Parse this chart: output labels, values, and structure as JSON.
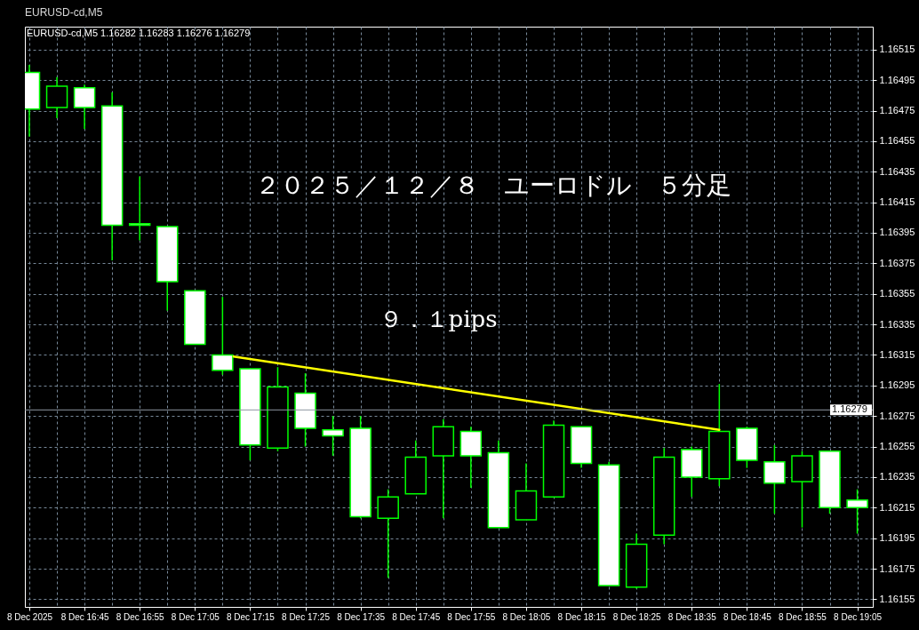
{
  "chart_data": {
    "type": "candlestick",
    "title": "２０２５／１２／８　ユーロドル　５分足",
    "subtitle": "EURUSD-cd,M5  1.16282 1.16283 1.16276 1.16279",
    "annotations": [
      "EURUSD-cd,M5",
      "９．１pips"
    ],
    "x": [
      "2025-12-08T16:35",
      "2025-12-08T16:40",
      "2025-12-08T16:45",
      "2025-12-08T16:50",
      "2025-12-08T16:55",
      "2025-12-08T17:00",
      "2025-12-08T17:05",
      "2025-12-08T17:10",
      "2025-12-08T17:15",
      "2025-12-08T17:20",
      "2025-12-08T17:25",
      "2025-12-08T17:30",
      "2025-12-08T17:35",
      "2025-12-08T17:40",
      "2025-12-08T17:45",
      "2025-12-08T17:50",
      "2025-12-08T17:55",
      "2025-12-08T18:00",
      "2025-12-08T18:05",
      "2025-12-08T18:10",
      "2025-12-08T18:15",
      "2025-12-08T18:20",
      "2025-12-08T18:25",
      "2025-12-08T18:30",
      "2025-12-08T18:35",
      "2025-12-08T18:40",
      "2025-12-08T18:45",
      "2025-12-08T18:50",
      "2025-12-08T18:55",
      "2025-12-08T19:00",
      "2025-12-08T19:05"
    ],
    "series": [
      {
        "type": "candlestick",
        "color": "#00ff00",
        "colors": [
          "#ffffff",
          "#000000",
          "#ffffff",
          "#ffffff",
          "#ffffff",
          "#ffffff",
          "#ffffff",
          "#ffffff",
          "#ffffff",
          "#000000",
          "#ffffff",
          "#ffffff",
          "#ffffff",
          "#000000",
          "#000000",
          "#000000",
          "#ffffff",
          "#ffffff",
          "#000000",
          "#000000",
          "#ffffff",
          "#ffffff",
          "#000000",
          "#000000",
          "#ffffff",
          "#000000",
          "#ffffff",
          "#ffffff",
          "#000000",
          "#ffffff",
          "#ffffff"
        ],
        "ohlc": [
          [
            1.165,
            1.16505,
            1.16458,
            1.16476
          ],
          [
            1.16477,
            1.16497,
            1.1647,
            1.16491
          ],
          [
            1.1649,
            1.16492,
            1.16463,
            1.16477
          ],
          [
            1.16478,
            1.16487,
            1.16377,
            1.164
          ],
          [
            1.16401,
            1.16432,
            1.1639,
            1.164
          ],
          [
            1.16399,
            1.16399,
            1.16344,
            1.16363
          ],
          [
            1.16357,
            1.16357,
            1.16322,
            1.16322
          ],
          [
            1.16315,
            1.16353,
            1.16302,
            1.16305
          ],
          [
            1.16306,
            1.16306,
            1.16246,
            1.16256
          ],
          [
            1.16254,
            1.16307,
            1.16252,
            1.16294
          ],
          [
            1.1629,
            1.16303,
            1.16255,
            1.16267
          ],
          [
            1.16266,
            1.16275,
            1.16249,
            1.16262
          ],
          [
            1.16267,
            1.16275,
            1.16208,
            1.16209
          ],
          [
            1.16208,
            1.16227,
            1.16169,
            1.16222
          ],
          [
            1.16224,
            1.16259,
            1.16224,
            1.16248
          ],
          [
            1.16249,
            1.16273,
            1.16208,
            1.16268
          ],
          [
            1.16265,
            1.16268,
            1.16228,
            1.16249
          ],
          [
            1.16251,
            1.16259,
            1.16202,
            1.16202
          ],
          [
            1.16207,
            1.16244,
            1.16207,
            1.16226
          ],
          [
            1.16222,
            1.16272,
            1.16222,
            1.16269
          ],
          [
            1.16268,
            1.16268,
            1.16241,
            1.16244
          ],
          [
            1.16243,
            1.16245,
            1.16164,
            1.16164
          ],
          [
            1.16163,
            1.16198,
            1.16162,
            1.16191
          ],
          [
            1.16197,
            1.16254,
            1.16191,
            1.16248
          ],
          [
            1.16253,
            1.16255,
            1.16222,
            1.16235
          ],
          [
            1.16234,
            1.16296,
            1.16229,
            1.16265
          ],
          [
            1.16267,
            1.16268,
            1.16241,
            1.16246
          ],
          [
            1.16245,
            1.16256,
            1.16211,
            1.16231
          ],
          [
            1.16232,
            1.16252,
            1.16202,
            1.16249
          ],
          [
            1.16252,
            1.16252,
            1.16211,
            1.16215
          ],
          [
            1.1622,
            1.16227,
            1.16198,
            1.16215
          ]
        ]
      },
      {
        "type": "line",
        "color": "#ffff00",
        "x": [
          "2025-12-08T17:12",
          "2025-12-08T18:40"
        ],
        "values": [
          1.16314,
          1.16266
        ]
      }
    ],
    "ref_lines": [
      {
        "axis": "y",
        "value": 1.16279,
        "label": "1.16279",
        "color": "#8c96a0"
      }
    ],
    "xlim": [
      "2025-12-08T16:35",
      "2025-12-08T19:07"
    ],
    "xticks": [
      {
        "value": "2025-12-08T16:35",
        "label": "8 Dec 2025"
      },
      {
        "value": "2025-12-08T16:40",
        "label": null
      },
      {
        "value": "2025-12-08T16:45",
        "label": "8 Dec 16:45"
      },
      {
        "value": "2025-12-08T16:50",
        "label": null
      },
      {
        "value": "2025-12-08T16:55",
        "label": "8 Dec 16:55"
      },
      {
        "value": "2025-12-08T17:00",
        "label": null
      },
      {
        "value": "2025-12-08T17:05",
        "label": "8 Dec 17:05"
      },
      {
        "value": "2025-12-08T17:10",
        "label": null
      },
      {
        "value": "2025-12-08T17:15",
        "label": "8 Dec 17:15"
      },
      {
        "value": "2025-12-08T17:20",
        "label": null
      },
      {
        "value": "2025-12-08T17:25",
        "label": "8 Dec 17:25"
      },
      {
        "value": "2025-12-08T17:30",
        "label": null
      },
      {
        "value": "2025-12-08T17:35",
        "label": "8 Dec 17:35"
      },
      {
        "value": "2025-12-08T17:40",
        "label": null
      },
      {
        "value": "2025-12-08T17:45",
        "label": "8 Dec 17:45"
      },
      {
        "value": "2025-12-08T17:50",
        "label": null
      },
      {
        "value": "2025-12-08T17:55",
        "label": "8 Dec 17:55"
      },
      {
        "value": "2025-12-08T18:00",
        "label": null
      },
      {
        "value": "2025-12-08T18:05",
        "label": "8 Dec 18:05"
      },
      {
        "value": "2025-12-08T18:10",
        "label": null
      },
      {
        "value": "2025-12-08T18:15",
        "label": "8 Dec 18:15"
      },
      {
        "value": "2025-12-08T18:20",
        "label": null
      },
      {
        "value": "2025-12-08T18:25",
        "label": "8 Dec 18:25"
      },
      {
        "value": "2025-12-08T18:30",
        "label": null
      },
      {
        "value": "2025-12-08T18:35",
        "label": "8 Dec 18:35"
      },
      {
        "value": "2025-12-08T18:40",
        "label": null
      },
      {
        "value": "2025-12-08T18:45",
        "label": "8 Dec 18:45"
      },
      {
        "value": "2025-12-08T18:50",
        "label": null
      },
      {
        "value": "2025-12-08T18:55",
        "label": "8 Dec 18:55"
      },
      {
        "value": "2025-12-08T19:00",
        "label": null
      },
      {
        "value": "2025-12-08T19:05",
        "label": "8 Dec 19:05"
      }
    ],
    "ylim": [
      1.1615,
      1.1653
    ],
    "yticks": [
      1.16155,
      1.16175,
      1.16195,
      1.16215,
      1.16235,
      1.16255,
      1.16275,
      1.16295,
      1.16315,
      1.16335,
      1.16355,
      1.16375,
      1.16395,
      1.16415,
      1.16435,
      1.16455,
      1.16475,
      1.16495,
      1.16515
    ],
    "grid": true
  }
}
